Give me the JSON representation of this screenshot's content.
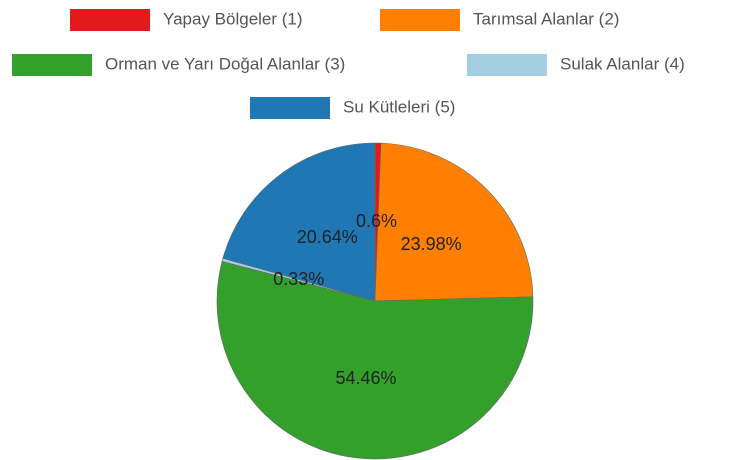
{
  "chart_data": {
    "type": "pie",
    "categories": [
      "Yapay Bölgeler (1)",
      "Tarımsal Alanlar (2)",
      "Orman ve Yarı Doğal Alanlar (3)",
      "Sulak Alanlar (4)",
      "Su Kütleleri (5)"
    ],
    "values": [
      0.6,
      23.98,
      54.46,
      0.33,
      20.64
    ],
    "value_labels": [
      "0.6%",
      "23.98%",
      "54.46%",
      "0.33%",
      "20.64%"
    ],
    "colors": [
      "#e31a1c",
      "#ff7f00",
      "#33a02c",
      "#a6cee3",
      "#1f78b4"
    ]
  }
}
